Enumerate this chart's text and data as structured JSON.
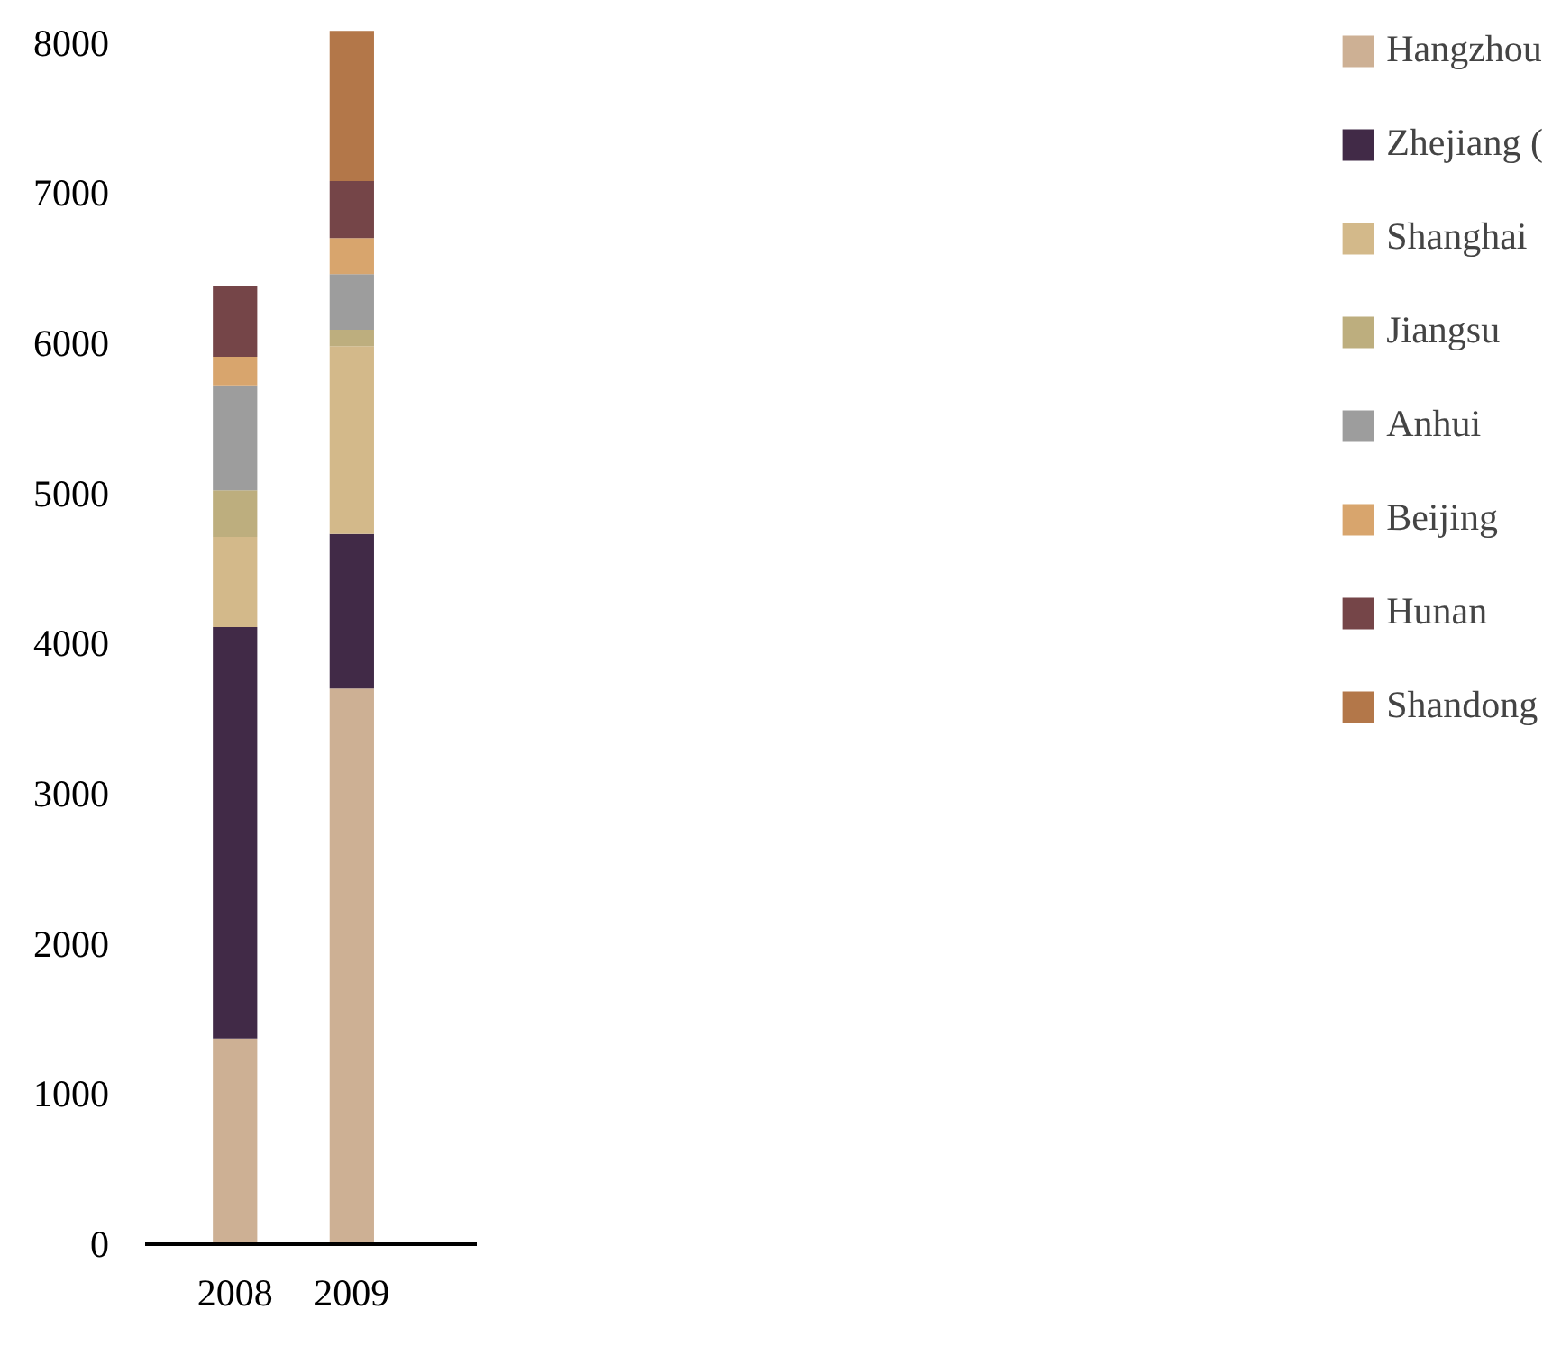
{
  "chart_data": {
    "type": "bar",
    "stacked": true,
    "categories": [
      "2008",
      "2009"
    ],
    "series": [
      {
        "name": "Hangzhou",
        "color": "#cdb094",
        "values": [
          1370,
          3700
        ]
      },
      {
        "name": "Zhejiang (",
        "color": "#412a47",
        "values": [
          2740,
          1030
        ]
      },
      {
        "name": "Shanghai",
        "color": "#d3b98a",
        "values": [
          600,
          1250
        ]
      },
      {
        "name": "Jiangsu",
        "color": "#bdae7e",
        "values": [
          310,
          110
        ]
      },
      {
        "name": "Anhui",
        "color": "#9d9d9d",
        "values": [
          700,
          370
        ]
      },
      {
        "name": "Beijing",
        "color": "#d8a56d",
        "values": [
          190,
          240
        ]
      },
      {
        "name": "Hunan",
        "color": "#754548",
        "values": [
          470,
          380
        ]
      },
      {
        "name": "Shandong",
        "color": "#b37749",
        "values": [
          0,
          1000
        ]
      }
    ],
    "ylim": [
      0,
      8100
    ],
    "yticks": [
      0,
      1000,
      2000,
      3000,
      4000,
      5000,
      6000,
      7000,
      8000
    ],
    "grid": false,
    "legend": "right"
  }
}
